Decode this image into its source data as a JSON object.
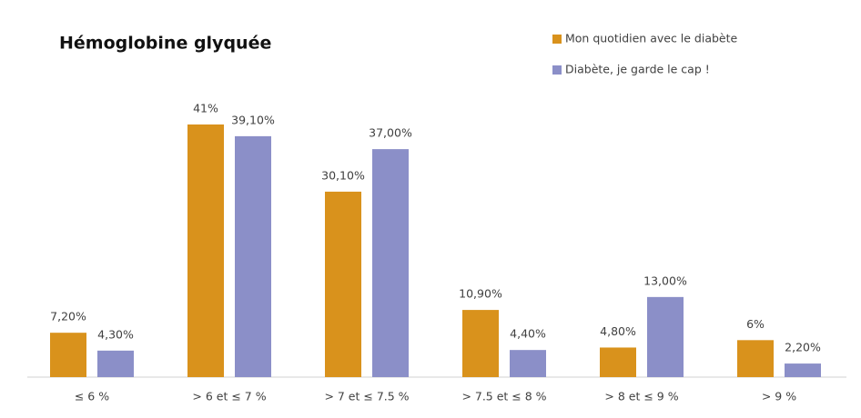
{
  "chart_data": {
    "type": "bar",
    "title": "Hémoglobine glyquée",
    "categories": [
      "≤ 6 %",
      "> 6 et ≤ 7 %",
      "> 7 et ≤ 7.5 %",
      "> 7.5 et ≤ 8 %",
      "> 8 et ≤ 9 %",
      "> 9 %"
    ],
    "series": [
      {
        "name": "Mon quotidien avec le diabète",
        "color": "#d9921c",
        "values": [
          7.2,
          41,
          30.1,
          10.9,
          4.8,
          6
        ],
        "value_labels": [
          "7,20%",
          "41%",
          "30,10%",
          "10,90%",
          "4,80%",
          "6%"
        ]
      },
      {
        "name": "Diabète, je garde le cap !",
        "color": "#8b8fc8",
        "values": [
          4.3,
          39.1,
          37,
          4.4,
          13,
          2.2
        ],
        "value_labels": [
          "4,30%",
          "39,10%",
          "37,00%",
          "4,40%",
          "13,00%",
          "2,20%"
        ]
      }
    ],
    "legend": "top-right"
  }
}
